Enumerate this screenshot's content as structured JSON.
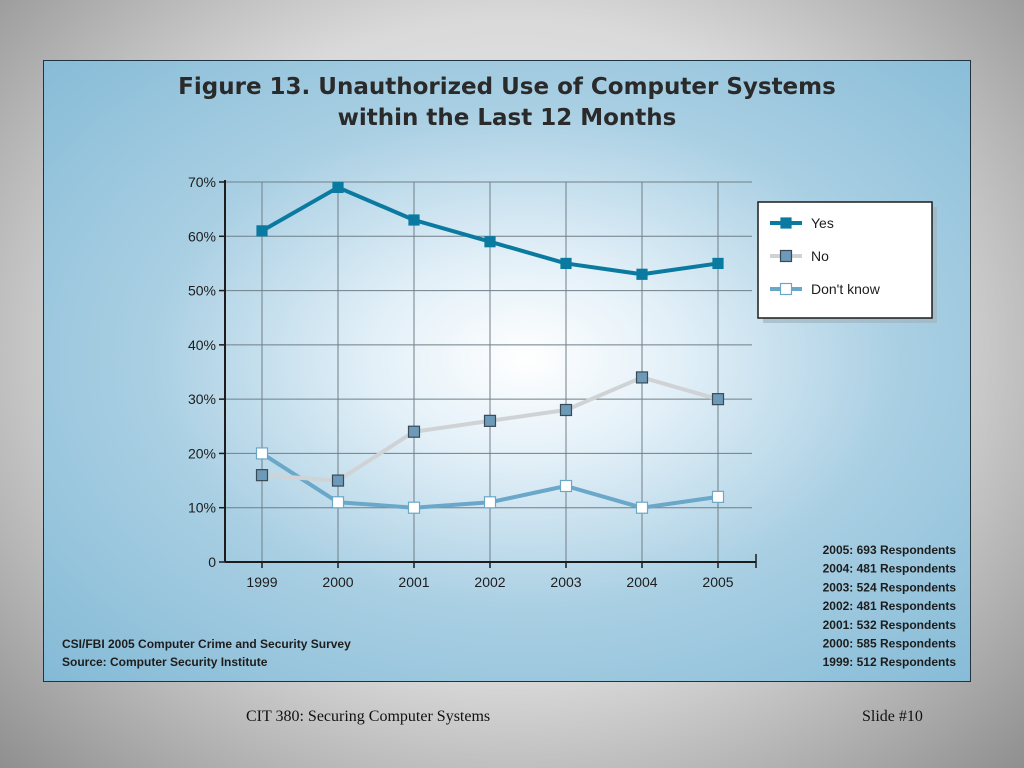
{
  "slide": {
    "footer_course": "CIT 380: Securing Computer Systems",
    "footer_slide": "Slide #10"
  },
  "chart_data": {
    "type": "line",
    "title_line1": "Figure 13. Unauthorized Use of Computer Systems",
    "title_line2": "within the Last 12 Months",
    "categories": [
      "1999",
      "2000",
      "2001",
      "2002",
      "2003",
      "2004",
      "2005"
    ],
    "ylim": [
      0,
      70
    ],
    "yticks": [
      0,
      10,
      20,
      30,
      40,
      50,
      60,
      70
    ],
    "ytick_labels": [
      "0",
      "10%",
      "20%",
      "30%",
      "40%",
      "50%",
      "60%",
      "70%"
    ],
    "grid": true,
    "legend_position": "top-right",
    "series": [
      {
        "name": "Yes",
        "values": [
          61,
          69,
          63,
          59,
          55,
          53,
          55
        ],
        "color": "#0b7aa0",
        "marker": "filled-square"
      },
      {
        "name": "No",
        "values": [
          16,
          15,
          24,
          26,
          28,
          34,
          30
        ],
        "color": "#cfd3d6",
        "marker_fill": "#6c9ab8",
        "marker": "square"
      },
      {
        "name": "Don't know",
        "values": [
          20,
          11,
          10,
          11,
          14,
          10,
          12
        ],
        "color": "#6aa7c9",
        "marker_fill": "#ffffff",
        "marker": "hollow-square"
      }
    ],
    "respondents": [
      "2005: 693 Respondents",
      "2004: 481 Respondents",
      "2003: 524 Respondents",
      "2002: 481 Respondents",
      "2001: 532 Respondents",
      "2000: 585 Respondents",
      "1999: 512 Respondents"
    ],
    "source": [
      "CSI/FBI 2005 Computer Crime and Security Survey",
      "Source: Computer Security Institute"
    ]
  }
}
